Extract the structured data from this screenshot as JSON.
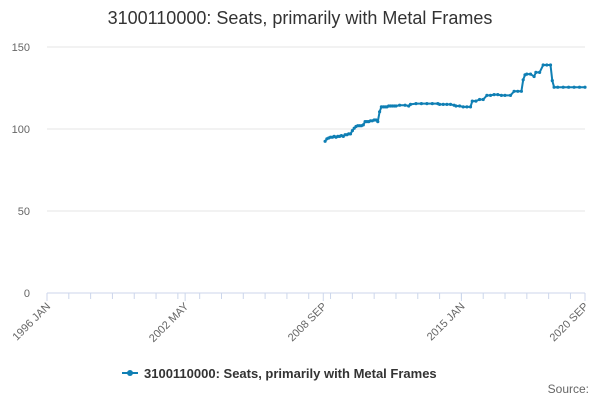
{
  "chart_data": {
    "type": "line",
    "title": "3100110000: Seats, primarily with Metal Frames",
    "xlabel": "",
    "ylabel": "",
    "x_range": [
      "1996-01",
      "2020-09"
    ],
    "x_tick_labels": [
      "1996 JAN",
      "2002 MAY",
      "2008 SEP",
      "2015 JAN",
      "2020 SEP"
    ],
    "x_tick_positions": [
      "1996-01",
      "2002-05",
      "2008-09",
      "2015-01",
      "2020-09"
    ],
    "ylim": [
      0,
      150
    ],
    "y_ticks": [
      0,
      50,
      100,
      150
    ],
    "grid": true,
    "legend_position": "bottom-center",
    "source_label": "Source:",
    "series": [
      {
        "name": "3100110000: Seats, primarily with Metal Frames",
        "color": "#0f7fb4",
        "points": [
          [
            "2008-10",
            92.5
          ],
          [
            "2008-11",
            94
          ],
          [
            "2008-12",
            94.5
          ],
          [
            "2009-01",
            95
          ],
          [
            "2009-02",
            95
          ],
          [
            "2009-03",
            95.5
          ],
          [
            "2009-04",
            95
          ],
          [
            "2009-05",
            95.5
          ],
          [
            "2009-06",
            95.5
          ],
          [
            "2009-07",
            96
          ],
          [
            "2009-08",
            95.5
          ],
          [
            "2009-09",
            96.5
          ],
          [
            "2009-10",
            96.5
          ],
          [
            "2009-11",
            97
          ],
          [
            "2009-12",
            97
          ],
          [
            "2010-01",
            99
          ],
          [
            "2010-02",
            100.5
          ],
          [
            "2010-03",
            101.5
          ],
          [
            "2010-04",
            102
          ],
          [
            "2010-05",
            102
          ],
          [
            "2010-06",
            102
          ],
          [
            "2010-07",
            102.5
          ],
          [
            "2010-08",
            104.5
          ],
          [
            "2010-09",
            104.5
          ],
          [
            "2010-10",
            104.5
          ],
          [
            "2010-11",
            105
          ],
          [
            "2010-12",
            105
          ],
          [
            "2011-01",
            105.5
          ],
          [
            "2011-02",
            105.5
          ],
          [
            "2011-03",
            104.5
          ],
          [
            "2011-04",
            110.5
          ],
          [
            "2011-05",
            113.5
          ],
          [
            "2011-06",
            113.5
          ],
          [
            "2011-07",
            113.5
          ],
          [
            "2011-08",
            113.5
          ],
          [
            "2011-09",
            114
          ],
          [
            "2011-10",
            114
          ],
          [
            "2011-11",
            114
          ],
          [
            "2011-12",
            114
          ],
          [
            "2012-01",
            114
          ],
          [
            "2012-03",
            114.5
          ],
          [
            "2012-06",
            114.5
          ],
          [
            "2012-08",
            114
          ],
          [
            "2012-09",
            115
          ],
          [
            "2012-12",
            115.5
          ],
          [
            "2013-03",
            115.5
          ],
          [
            "2013-06",
            115.5
          ],
          [
            "2013-09",
            115.5
          ],
          [
            "2013-12",
            115.5
          ],
          [
            "2014-01",
            115
          ],
          [
            "2014-03",
            115
          ],
          [
            "2014-05",
            115
          ],
          [
            "2014-07",
            115
          ],
          [
            "2014-09",
            114.5
          ],
          [
            "2014-10",
            114
          ],
          [
            "2014-12",
            114
          ],
          [
            "2015-02",
            113.5
          ],
          [
            "2015-04",
            113.5
          ],
          [
            "2015-06",
            113.5
          ],
          [
            "2015-07",
            117
          ],
          [
            "2015-09",
            117
          ],
          [
            "2015-11",
            118
          ],
          [
            "2016-01",
            118
          ],
          [
            "2016-03",
            120.5
          ],
          [
            "2016-05",
            120.5
          ],
          [
            "2016-07",
            121
          ],
          [
            "2016-09",
            121
          ],
          [
            "2016-11",
            120.5
          ],
          [
            "2017-01",
            120.5
          ],
          [
            "2017-04",
            120.5
          ],
          [
            "2017-06",
            123
          ],
          [
            "2017-08",
            123
          ],
          [
            "2017-10",
            123
          ],
          [
            "2017-11",
            130
          ],
          [
            "2017-12",
            133
          ],
          [
            "2018-01",
            133.5
          ],
          [
            "2018-03",
            133.5
          ],
          [
            "2018-05",
            132
          ],
          [
            "2018-06",
            134.5
          ],
          [
            "2018-08",
            134.5
          ],
          [
            "2018-10",
            139
          ],
          [
            "2018-12",
            139
          ],
          [
            "2019-02",
            139
          ],
          [
            "2019-03",
            129.5
          ],
          [
            "2019-04",
            125.5
          ],
          [
            "2019-06",
            125.5
          ],
          [
            "2019-09",
            125.5
          ],
          [
            "2019-12",
            125.5
          ],
          [
            "2020-03",
            125.5
          ],
          [
            "2020-06",
            125.5
          ],
          [
            "2020-09",
            125.5
          ]
        ]
      }
    ]
  }
}
